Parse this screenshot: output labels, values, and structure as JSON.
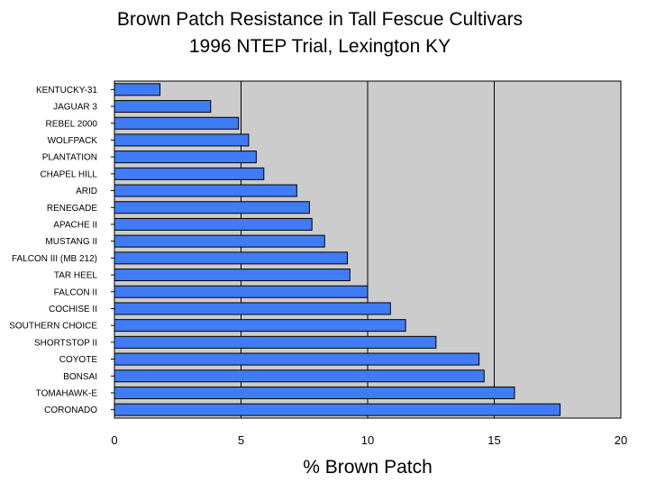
{
  "chart_data": {
    "type": "bar",
    "orientation": "horizontal",
    "title": "Brown Patch Resistance in Tall Fescue Cultivars",
    "subtitle": "1996 NTEP Trial, Lexington KY",
    "xlabel": "% Brown Patch",
    "ylabel": "",
    "xlim": [
      0,
      20
    ],
    "xticks": [
      "0",
      "5",
      "10",
      "15",
      "20"
    ],
    "grid": "vertical",
    "legend": "none",
    "categories": [
      "KENTUCKY-31",
      "JAGUAR 3",
      "REBEL 2000",
      "WOLFPACK",
      "PLANTATION",
      "CHAPEL HILL",
      "ARID",
      "RENEGADE",
      "APACHE II",
      "MUSTANG II",
      "FALCON III (MB 212)",
      "TAR HEEL",
      "FALCON II",
      "COCHISE II",
      "SOUTHERN CHOICE",
      "SHORTSTOP II",
      "COYOTE",
      "BONSAI",
      "TOMAHAWK-E",
      "CORONADO"
    ],
    "values": [
      1.8,
      3.8,
      4.9,
      5.3,
      5.6,
      5.9,
      7.2,
      7.7,
      7.8,
      8.3,
      9.2,
      9.3,
      10.0,
      10.9,
      11.5,
      12.7,
      14.4,
      14.6,
      15.8,
      17.6
    ],
    "colors": {
      "bar": "#3f7cf5",
      "bar_border": "#000000",
      "plot_bg": "#cccccc",
      "gridline": "#000000"
    }
  }
}
